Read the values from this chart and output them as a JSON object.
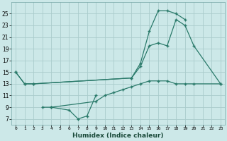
{
  "background_color": "#cce8e8",
  "grid_color": "#aacccc",
  "line_color": "#2a7a6a",
  "line1_x": [
    0,
    1,
    2,
    13,
    14,
    15,
    16,
    17,
    18,
    19,
    20,
    23
  ],
  "line1_y": [
    15,
    13,
    13,
    14,
    16,
    19.5,
    20,
    19.5,
    24,
    23,
    19.5,
    13
  ],
  "line2_x": [
    0,
    1,
    2,
    13,
    14,
    15,
    16,
    17,
    18,
    19
  ],
  "line2_y": [
    15,
    13,
    13,
    14,
    16.5,
    22,
    25.5,
    25.5,
    25,
    24
  ],
  "line3_x": [
    3,
    4,
    6,
    7,
    8,
    9
  ],
  "line3_y": [
    9,
    9,
    8.5,
    7,
    7.5,
    11
  ],
  "line4_x": [
    4,
    9,
    10,
    11,
    12,
    13,
    14,
    15,
    16,
    17,
    18,
    19,
    20,
    23
  ],
  "line4_y": [
    9,
    10,
    11,
    11.5,
    12,
    12.5,
    13,
    13.5,
    13.5,
    13.5,
    13,
    13,
    13,
    13
  ],
  "xlabel": "Humidex (Indice chaleur)",
  "xlim": [
    -0.5,
    23.5
  ],
  "ylim": [
    6,
    27
  ],
  "yticks": [
    7,
    9,
    11,
    13,
    15,
    17,
    19,
    21,
    23,
    25
  ],
  "xticks": [
    0,
    1,
    2,
    3,
    4,
    5,
    6,
    7,
    8,
    9,
    10,
    11,
    12,
    13,
    14,
    15,
    16,
    17,
    18,
    19,
    20,
    21,
    22,
    23
  ],
  "xtick_labels": [
    "0",
    "1",
    "2",
    "3",
    "4",
    "5",
    "6",
    "7",
    "8",
    "9",
    "10",
    "11",
    "12",
    "13",
    "14",
    "15",
    "16",
    "17",
    "18",
    "19",
    "20",
    "21",
    "22",
    "23"
  ]
}
